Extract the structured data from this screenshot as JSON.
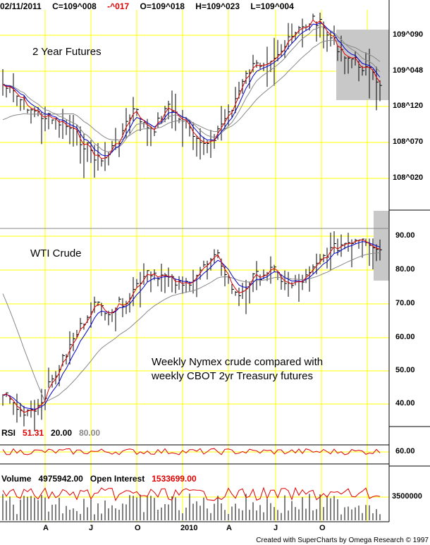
{
  "header": {
    "date": "02/11/2011",
    "close": "C=109^008",
    "change": "-^017",
    "open": "O=109^018",
    "high": "H=109^023",
    "low": "L=109^004"
  },
  "panels": {
    "top_label": "2 Year Futures",
    "mid_label": "WTI Crude",
    "annotation_line1": "Weekly Nymex crude compared with",
    "annotation_line2": "weekly CBOT 2yr Treasury futures"
  },
  "rsi": {
    "label": "RSI",
    "value": "51.31",
    "low_level": "20.00",
    "high_level": "80.00",
    "axis_tick": "60.00"
  },
  "volume": {
    "label": "Volume",
    "value": "4975942.00",
    "oi_label": "Open Interest",
    "oi_value": "1533699.00",
    "axis_tick": "3500000"
  },
  "axis_top": [
    "109^090",
    "109^048",
    "108^120",
    "108^070",
    "108^020"
  ],
  "axis_mid": [
    "90.00",
    "80.00",
    "70.00",
    "60.00",
    "50.00",
    "40.00"
  ],
  "x_ticks": [
    "A",
    "J",
    "O",
    "2010",
    "A",
    "J",
    "O"
  ],
  "credit": "Created with SuperCharts by Omega Research © 1997",
  "colors": {
    "grid": "#ffff00",
    "price_bars": "#000000",
    "ma_fast": "#e00000",
    "ma_mid": "#0000cc",
    "ma_slow": "#888888",
    "highlight": "#c8c8c8",
    "change_negative": "#e00000",
    "oi_value": "#e00000"
  },
  "chart_data": [
    {
      "type": "ohlc",
      "label": "2 Year Futures",
      "y_ticks": [
        "109^090",
        "109^048",
        "108^120",
        "108^070",
        "108^020"
      ],
      "approx_close_trend": [
        109.048,
        108.12,
        108.06,
        108.04,
        108.02,
        108.08,
        108.1,
        109.01,
        108.1,
        108.05,
        108.02,
        108.11,
        109.06,
        109.09,
        109.078,
        109.048,
        109.008
      ],
      "moving_averages": [
        "fast (red)",
        "medium (blue)",
        "slow (gray)"
      ],
      "latest": {
        "open": "109^018",
        "high": "109^023",
        "low": "109^004",
        "close": "109^008",
        "change": "-^017"
      }
    },
    {
      "type": "ohlc",
      "label": "WTI Crude",
      "y_ticks": [
        90,
        80,
        70,
        60,
        50,
        40
      ],
      "ylim": [
        35,
        95
      ],
      "approx_close_trend": [
        44,
        38,
        40,
        50,
        60,
        70,
        68,
        72,
        80,
        78,
        75,
        80,
        84,
        72,
        78,
        80,
        75,
        78,
        85,
        88,
        90,
        86
      ],
      "moving_averages": [
        "fast (red)",
        "medium (blue)",
        "slow (gray)"
      ]
    },
    {
      "type": "line",
      "label": "RSI",
      "value": 51.31,
      "levels": [
        20,
        80
      ],
      "y_tick": 60
    },
    {
      "type": "bar",
      "label": "Volume",
      "value": 4975942,
      "open_interest": 1533699,
      "y_tick": 3500000
    }
  ]
}
